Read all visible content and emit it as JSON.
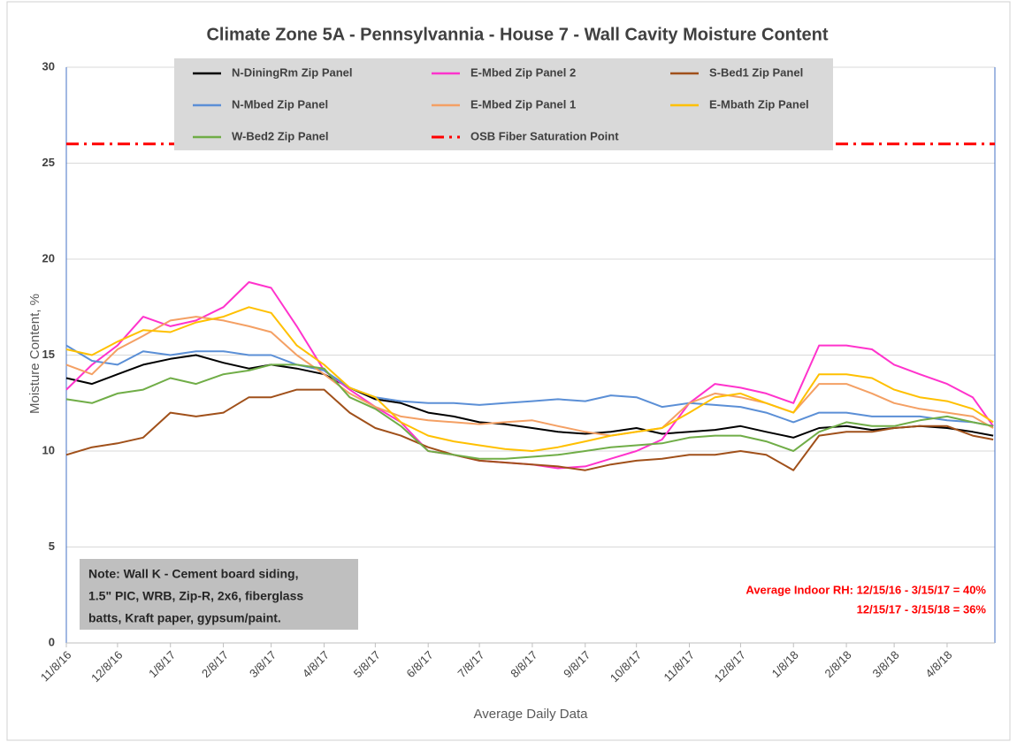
{
  "chart_data": {
    "type": "line",
    "title": "Climate Zone 5A - Pennsylvannia - House 7 - Wall Cavity Moisture Content",
    "x_label": "Average Daily Data",
    "y_label": "Moisture Content, %",
    "x": [
      "2016-11-08",
      "2016-11-23",
      "2016-12-08",
      "2016-12-23",
      "2017-01-08",
      "2017-01-23",
      "2017-02-08",
      "2017-02-23",
      "2017-03-08",
      "2017-03-23",
      "2017-04-08",
      "2017-04-23",
      "2017-05-08",
      "2017-05-23",
      "2017-06-08",
      "2017-06-23",
      "2017-07-08",
      "2017-07-23",
      "2017-08-08",
      "2017-08-23",
      "2017-09-08",
      "2017-09-23",
      "2017-10-08",
      "2017-10-23",
      "2017-11-08",
      "2017-11-23",
      "2017-12-08",
      "2017-12-23",
      "2018-01-08",
      "2018-01-23",
      "2018-02-08",
      "2018-02-23",
      "2018-03-08",
      "2018-03-23",
      "2018-04-08",
      "2018-04-23",
      "2018-05-05"
    ],
    "xlim": [
      "2016-11-08",
      "2018-05-06"
    ],
    "xticks": [
      {
        "value": "2016-11-08",
        "label": "11/8/16"
      },
      {
        "value": "2016-12-08",
        "label": "12/8/16"
      },
      {
        "value": "2017-01-08",
        "label": "1/8/17"
      },
      {
        "value": "2017-02-08",
        "label": "2/8/17"
      },
      {
        "value": "2017-03-08",
        "label": "3/8/17"
      },
      {
        "value": "2017-04-08",
        "label": "4/8/17"
      },
      {
        "value": "2017-05-08",
        "label": "5/8/17"
      },
      {
        "value": "2017-06-08",
        "label": "6/8/17"
      },
      {
        "value": "2017-07-08",
        "label": "7/8/17"
      },
      {
        "value": "2017-08-08",
        "label": "8/8/17"
      },
      {
        "value": "2017-09-08",
        "label": "9/8/17"
      },
      {
        "value": "2017-10-08",
        "label": "10/8/17"
      },
      {
        "value": "2017-11-08",
        "label": "11/8/17"
      },
      {
        "value": "2017-12-08",
        "label": "12/8/17"
      },
      {
        "value": "2018-01-08",
        "label": "1/8/18"
      },
      {
        "value": "2018-02-08",
        "label": "2/8/18"
      },
      {
        "value": "2018-03-08",
        "label": "3/8/18"
      },
      {
        "value": "2018-04-08",
        "label": "4/8/18"
      }
    ],
    "ylim": [
      0,
      30
    ],
    "yticks": [
      0,
      5,
      10,
      15,
      20,
      25,
      30
    ],
    "grid": true,
    "series": [
      {
        "name": "N-DiningRm Zip Panel",
        "color": "#000000",
        "values": [
          13.8,
          13.5,
          14.0,
          14.5,
          14.8,
          15.0,
          14.6,
          14.3,
          14.5,
          14.3,
          14.0,
          13.3,
          12.7,
          12.5,
          12.0,
          11.8,
          11.5,
          11.4,
          11.2,
          11.0,
          10.9,
          11.0,
          11.2,
          10.9,
          11.0,
          11.1,
          11.3,
          11.0,
          10.7,
          11.2,
          11.3,
          11.1,
          11.2,
          11.3,
          11.2,
          11.0,
          10.8
        ]
      },
      {
        "name": "E-Mbed Zip Panel 2",
        "color": "#ff33cc",
        "values": [
          13.2,
          14.5,
          15.5,
          17.0,
          16.5,
          16.8,
          17.5,
          18.8,
          18.5,
          16.5,
          14.2,
          13.2,
          12.3,
          11.5,
          10.0,
          9.8,
          9.5,
          9.4,
          9.3,
          9.1,
          9.2,
          9.6,
          10.0,
          10.6,
          12.5,
          13.5,
          13.3,
          13.0,
          12.5,
          15.5,
          15.5,
          15.3,
          14.5,
          14.0,
          13.5,
          12.8,
          11.3
        ]
      },
      {
        "name": "S-Bed1 Zip Panel",
        "color": "#a0501a",
        "values": [
          9.8,
          10.2,
          10.4,
          10.7,
          12.0,
          11.8,
          12.0,
          12.8,
          12.8,
          13.2,
          13.2,
          12.0,
          11.2,
          10.8,
          10.2,
          9.8,
          9.5,
          9.4,
          9.3,
          9.2,
          9.0,
          9.3,
          9.5,
          9.6,
          9.8,
          9.8,
          10.0,
          9.8,
          9.0,
          10.8,
          11.0,
          11.0,
          11.2,
          11.3,
          11.3,
          10.8,
          10.6
        ]
      },
      {
        "name": "N-Mbed Zip Panel",
        "color": "#5b8fd6",
        "values": [
          15.5,
          14.7,
          14.5,
          15.2,
          15.0,
          15.2,
          15.2,
          15.0,
          15.0,
          14.5,
          14.2,
          13.3,
          12.8,
          12.6,
          12.5,
          12.5,
          12.4,
          12.5,
          12.6,
          12.7,
          12.6,
          12.9,
          12.8,
          12.3,
          12.5,
          12.4,
          12.3,
          12.0,
          11.5,
          12.0,
          12.0,
          11.8,
          11.8,
          11.8,
          11.6,
          11.5,
          11.3
        ]
      },
      {
        "name": "E-Mbed Zip Panel 1",
        "color": "#f4a064",
        "values": [
          14.5,
          14.0,
          15.3,
          16.0,
          16.8,
          17.0,
          16.8,
          16.5,
          16.2,
          15.0,
          14.0,
          13.0,
          12.3,
          11.8,
          11.6,
          11.5,
          11.4,
          11.5,
          11.6,
          11.3,
          11.0,
          10.8,
          11.0,
          11.2,
          12.5,
          13.0,
          12.8,
          12.5,
          12.0,
          13.5,
          13.5,
          13.0,
          12.5,
          12.2,
          12.0,
          11.8,
          11.2
        ]
      },
      {
        "name": "E-Mbath Zip Panel",
        "color": "#ffc000",
        "values": [
          15.3,
          15.0,
          15.7,
          16.3,
          16.2,
          16.7,
          17.0,
          17.5,
          17.2,
          15.5,
          14.5,
          13.3,
          12.8,
          11.5,
          10.8,
          10.5,
          10.3,
          10.1,
          10.0,
          10.2,
          10.5,
          10.8,
          11.0,
          11.2,
          12.0,
          12.8,
          13.0,
          12.5,
          12.0,
          14.0,
          14.0,
          13.8,
          13.2,
          12.8,
          12.6,
          12.2,
          11.5
        ]
      },
      {
        "name": "W-Bed2 Zip Panel",
        "color": "#70ad47",
        "values": [
          12.7,
          12.5,
          13.0,
          13.2,
          13.8,
          13.5,
          14.0,
          14.2,
          14.5,
          14.5,
          14.3,
          12.8,
          12.2,
          11.3,
          10.0,
          9.8,
          9.6,
          9.6,
          9.7,
          9.8,
          10.0,
          10.2,
          10.3,
          10.4,
          10.7,
          10.8,
          10.8,
          10.5,
          10.0,
          11.0,
          11.5,
          11.3,
          11.3,
          11.6,
          11.8,
          11.5,
          11.3
        ]
      }
    ],
    "hlines": [
      {
        "name": "OSB Fiber Saturation Point",
        "value": 26,
        "color": "#ff0000",
        "dash": "14 6 3 6"
      }
    ],
    "note": [
      "Note: Wall K - Cement board siding,",
      "1.5\" PIC, WRB, Zip-R, 2x6, fiberglass",
      "batts, Kraft paper, gypsum/paint."
    ],
    "annotation": [
      "Average Indoor RH: 12/15/16 - 3/15/17 = 40%",
      "12/15/17 - 3/15/18 = 36%"
    ]
  }
}
